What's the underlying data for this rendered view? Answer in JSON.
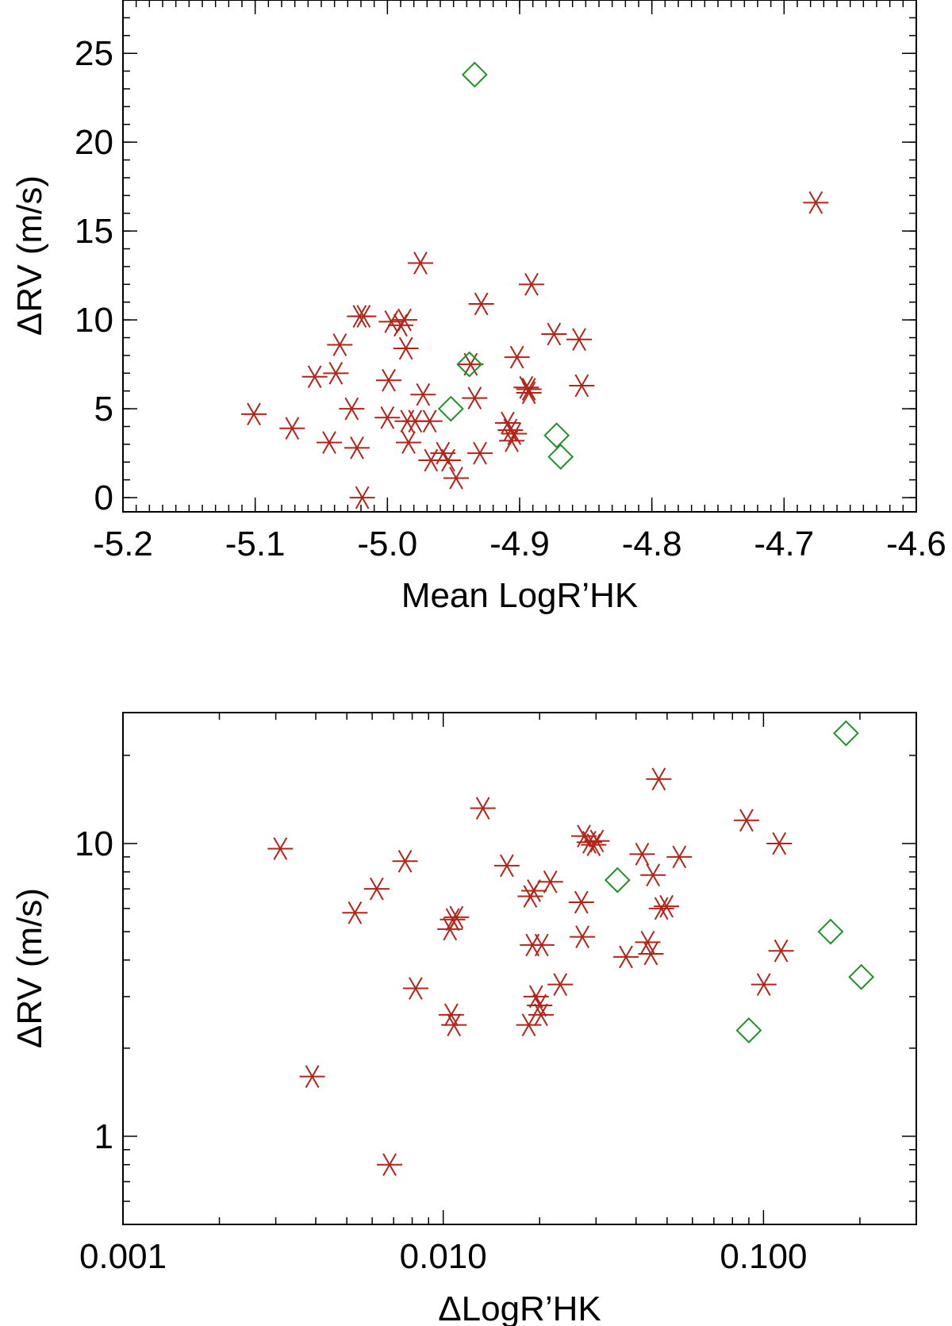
{
  "chart_data": [
    {
      "type": "scatter",
      "xlabel": "Mean LogR’HK",
      "ylabel": "ΔRV (m/s)",
      "xlim": [
        -5.2,
        -4.6
      ],
      "ylim": [
        -0.8,
        28
      ],
      "xscale": "linear",
      "yscale": "linear",
      "x_ticks": [
        -5.2,
        -5.1,
        -5.0,
        -4.9,
        -4.8,
        -4.7,
        -4.6
      ],
      "x_tick_labels": [
        "-5.2",
        "-5.1",
        "-5.0",
        "-4.9",
        "-4.8",
        "-4.7",
        "-4.6"
      ],
      "y_ticks": [
        0,
        5,
        10,
        15,
        20,
        25
      ],
      "y_tick_labels": [
        "0",
        "5",
        "10",
        "15",
        "20",
        "25"
      ],
      "series": [
        {
          "name": "asterisk",
          "marker": "asterisk",
          "color": "#b22418",
          "x": [
            -5.101,
            -5.072,
            -5.055,
            -5.044,
            -5.039,
            -5.036,
            -5.027,
            -5.023,
            -5.021,
            -5.019,
            -5.018,
            -5.0,
            -4.999,
            -4.997,
            -4.99,
            -4.987,
            -4.986,
            -4.985,
            -4.984,
            -4.979,
            -4.975,
            -4.973,
            -4.968,
            -4.967,
            -4.958,
            -4.954,
            -4.948,
            -4.937,
            -4.934,
            -4.93,
            -4.929,
            -4.909,
            -4.907,
            -4.906,
            -4.904,
            -4.902,
            -4.895,
            -4.893,
            -4.893,
            -4.891,
            -4.874,
            -4.855,
            -4.853,
            -4.676
          ],
          "y": [
            4.7,
            3.9,
            6.8,
            3.1,
            7.0,
            8.6,
            5.0,
            2.8,
            10.2,
            0.0,
            10.2,
            4.5,
            6.6,
            9.9,
            9.7,
            10.0,
            8.4,
            4.3,
            3.1,
            4.3,
            13.2,
            5.8,
            4.3,
            2.1,
            2.5,
            2.1,
            1.1,
            7.5,
            5.6,
            2.5,
            10.9,
            4.2,
            3.8,
            3.2,
            3.6,
            7.9,
            6.2,
            5.9,
            6.1,
            12.0,
            9.2,
            8.9,
            6.3,
            16.6
          ]
        },
        {
          "name": "diamond",
          "marker": "diamond",
          "color": "#1e9128",
          "x": [
            -4.934,
            -4.938,
            -4.952,
            -4.872,
            -4.869
          ],
          "y": [
            23.8,
            7.5,
            5.0,
            3.5,
            2.3
          ]
        }
      ]
    },
    {
      "type": "scatter",
      "xlabel": "ΔLogR’HK",
      "ylabel": "ΔRV (m/s)",
      "xlim": [
        0.001,
        0.3
      ],
      "ylim": [
        0.5,
        28
      ],
      "xscale": "log",
      "yscale": "log",
      "x_ticks": [
        0.001,
        0.01,
        0.1
      ],
      "x_tick_labels": [
        "0.001",
        "0.010",
        "0.100"
      ],
      "y_ticks": [
        1,
        10
      ],
      "y_tick_labels": [
        "1",
        "10"
      ],
      "series": [
        {
          "name": "asterisk",
          "marker": "asterisk",
          "color": "#b22418",
          "x": [
            0.0031,
            0.0039,
            0.0053,
            0.0062,
            0.0068,
            0.0076,
            0.0082,
            0.0105,
            0.0106,
            0.0107,
            0.0108,
            0.011,
            0.0133,
            0.0158,
            0.0185,
            0.0187,
            0.019,
            0.0192,
            0.0195,
            0.02,
            0.0202,
            0.0203,
            0.0216,
            0.0232,
            0.027,
            0.0272,
            0.0275,
            0.0286,
            0.0295,
            0.0302,
            0.0372,
            0.0418,
            0.0435,
            0.0445,
            0.0452,
            0.0471,
            0.048,
            0.0498,
            0.0546,
            0.0885,
            0.1002,
            0.112,
            0.1135
          ],
          "y": [
            9.6,
            1.6,
            5.8,
            7.0,
            0.8,
            8.7,
            3.2,
            5.1,
            2.6,
            5.5,
            2.4,
            5.6,
            13.2,
            8.4,
            2.4,
            6.6,
            4.5,
            6.9,
            3.0,
            2.8,
            2.6,
            4.5,
            7.4,
            3.3,
            6.3,
            4.8,
            10.6,
            10.1,
            9.9,
            10.2,
            4.1,
            9.2,
            4.6,
            4.2,
            7.8,
            16.6,
            6.0,
            6.1,
            9.0,
            12.0,
            3.3,
            10.0,
            4.3
          ]
        },
        {
          "name": "diamond",
          "marker": "diamond",
          "color": "#1e9128",
          "x": [
            0.035,
            0.09,
            0.162,
            0.181,
            0.202
          ],
          "y": [
            7.5,
            2.3,
            5.0,
            23.8,
            3.5
          ]
        }
      ]
    }
  ]
}
